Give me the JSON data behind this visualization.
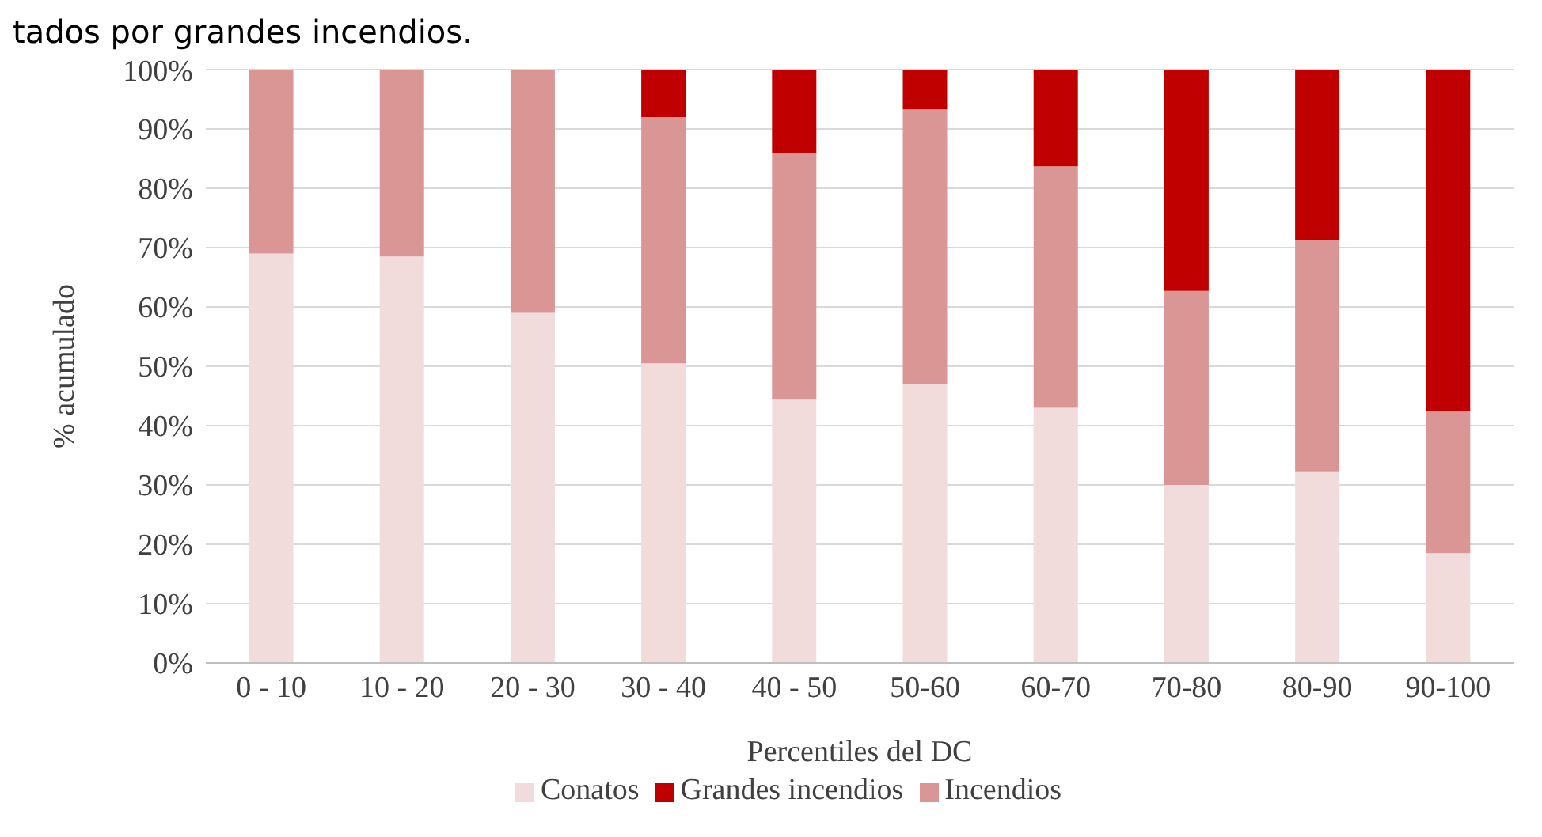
{
  "chart_data": {
    "type": "bar",
    "stacked": true,
    "annotations": [
      "tados por grandes incendios."
    ],
    "xlabel": "Percentiles del DC",
    "ylabel": "% acumulado",
    "categories": [
      "0 - 10",
      "10 - 20",
      "20 - 30",
      "30 - 40",
      "40 - 50",
      "50-60",
      "60-70",
      "70-80",
      "80-90",
      "90-100"
    ],
    "series": [
      {
        "name": "Conatos",
        "color": "#f2dcdb",
        "values": [
          69,
          68.5,
          59,
          50.5,
          44.5,
          47,
          43,
          30,
          32.3,
          18.5
        ]
      },
      {
        "name": "Incendios",
        "color": "#d99694",
        "values": [
          31,
          31.5,
          41,
          41.5,
          41.5,
          46.3,
          40.7,
          32.7,
          39,
          24
        ]
      },
      {
        "name": "Grandes incendios",
        "color": "#c00000",
        "values": [
          0,
          0,
          0,
          8,
          14,
          6.7,
          16.3,
          37.3,
          28.7,
          57.5
        ]
      }
    ],
    "ylim": [
      0,
      100
    ],
    "yticks": [
      {
        "value": 0,
        "label": "0%"
      },
      {
        "value": 10,
        "label": "10%"
      },
      {
        "value": 20,
        "label": "20%"
      },
      {
        "value": 30,
        "label": "30%"
      },
      {
        "value": 40,
        "label": "40%"
      },
      {
        "value": 50,
        "label": "50%"
      },
      {
        "value": 60,
        "label": "60%"
      },
      {
        "value": 70,
        "label": "70%"
      },
      {
        "value": 80,
        "label": "80%"
      },
      {
        "value": 90,
        "label": "90%"
      },
      {
        "value": 100,
        "label": "100%"
      }
    ],
    "grid": "y",
    "legend": "bottom"
  }
}
